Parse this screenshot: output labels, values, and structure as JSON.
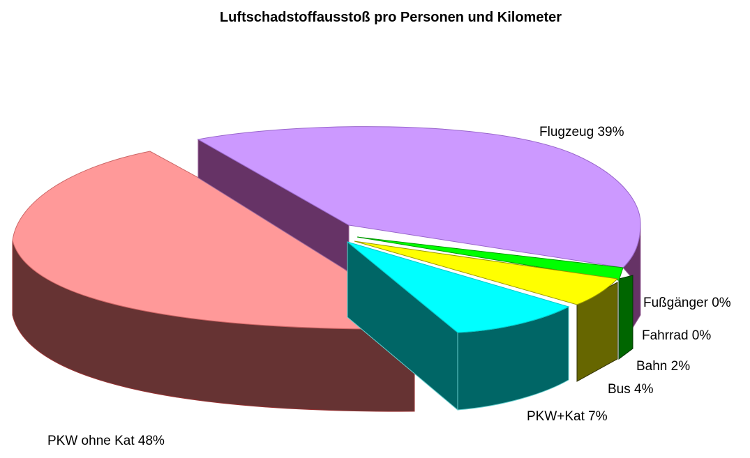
{
  "chart_data": {
    "type": "pie",
    "title": "Luftschadstoffausstoß pro Personen und Kilometer",
    "slices": [
      {
        "label": "PKW ohne Kat 48%",
        "value": 48,
        "top_color": "#FF9999",
        "side_color": "#663333"
      },
      {
        "label": "Flugzeug 39%",
        "value": 39,
        "top_color": "#CC99FF",
        "side_color": "#663366"
      },
      {
        "label": "Fußgänger 0%",
        "value": 0,
        "top_color": "#00FF00",
        "side_color": "#006600"
      },
      {
        "label": "Fahrrad 0%",
        "value": 0,
        "top_color": "#00FF00",
        "side_color": "#006600"
      },
      {
        "label": "Bahn 2%",
        "value": 2,
        "top_color": "#00FF00",
        "side_color": "#006600"
      },
      {
        "label": "Bus 4%",
        "value": 4,
        "top_color": "#FFFF00",
        "side_color": "#666600"
      },
      {
        "label": "PKW+Kat 7%",
        "value": 7,
        "top_color": "#00FFFF",
        "side_color": "#006666"
      }
    ]
  }
}
